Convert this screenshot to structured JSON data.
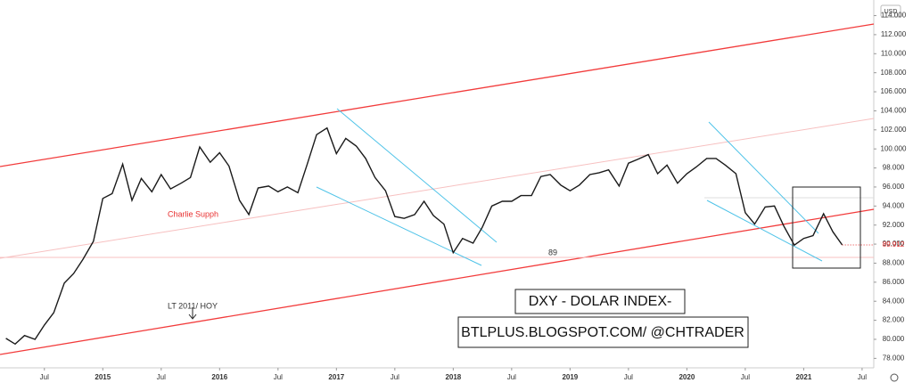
{
  "chart_data": {
    "type": "line",
    "color": "#1a1a1a",
    "x": [
      2014.17,
      2014.25,
      2014.33,
      2014.42,
      2014.5,
      2014.58,
      2014.67,
      2014.75,
      2014.83,
      2014.92,
      2015.0,
      2015.08,
      2015.17,
      2015.25,
      2015.33,
      2015.42,
      2015.5,
      2015.58,
      2015.67,
      2015.75,
      2015.83,
      2015.92,
      2016.0,
      2016.08,
      2016.17,
      2016.25,
      2016.33,
      2016.42,
      2016.5,
      2016.58,
      2016.67,
      2016.75,
      2016.83,
      2016.92,
      2017.0,
      2017.08,
      2017.17,
      2017.25,
      2017.33,
      2017.42,
      2017.5,
      2017.58,
      2017.67,
      2017.75,
      2017.83,
      2017.92,
      2018.0,
      2018.08,
      2018.17,
      2018.25,
      2018.33,
      2018.42,
      2018.5,
      2018.58,
      2018.67,
      2018.75,
      2018.83,
      2018.92,
      2019.0,
      2019.08,
      2019.17,
      2019.25,
      2019.33,
      2019.42,
      2019.5,
      2019.58,
      2019.67,
      2019.75,
      2019.83,
      2019.92,
      2020.0,
      2020.08,
      2020.17,
      2020.25,
      2020.33,
      2020.42,
      2020.5,
      2020.58,
      2020.67,
      2020.75,
      2020.83,
      2020.92,
      2021.0,
      2021.08,
      2021.17,
      2021.25,
      2021.33
    ],
    "values": [
      80.1,
      79.5,
      80.4,
      80.0,
      81.5,
      82.8,
      85.9,
      86.9,
      88.4,
      90.3,
      94.8,
      95.3,
      98.4,
      94.6,
      96.9,
      95.5,
      97.3,
      95.8,
      96.4,
      97.0,
      100.2,
      98.6,
      99.6,
      98.2,
      94.6,
      93.1,
      95.9,
      96.1,
      95.5,
      96.0,
      95.4,
      98.4,
      101.5,
      102.2,
      99.5,
      101.1,
      100.3,
      99.0,
      97.0,
      95.6,
      92.9,
      92.7,
      93.1,
      94.5,
      93.0,
      92.1,
      89.1,
      90.6,
      90.1,
      91.8,
      94.0,
      94.5,
      94.5,
      95.1,
      95.1,
      97.1,
      97.3,
      96.2,
      95.6,
      96.2,
      97.3,
      97.5,
      97.8,
      96.1,
      98.5,
      98.9,
      99.4,
      97.4,
      98.3,
      96.4,
      97.4,
      98.1,
      99.0,
      99.0,
      98.3,
      97.4,
      93.3,
      92.1,
      93.9,
      94.0,
      91.9,
      89.9,
      90.6,
      90.9,
      93.2,
      91.3,
      89.912
    ],
    "last_value": 89.912,
    "currency": "USD",
    "xlim": [
      2014.12,
      2021.6
    ],
    "xticks": [
      {
        "value": 2014.5,
        "label": "Jul"
      },
      2015,
      {
        "value": 2015.5,
        "label": "Jul"
      },
      2016,
      {
        "value": 2016.5,
        "label": "Jul"
      },
      2017,
      {
        "value": 2017.5,
        "label": "Jul"
      },
      2018,
      {
        "value": 2018.5,
        "label": "Jul"
      },
      2019,
      {
        "value": 2019.5,
        "label": "Jul"
      },
      2020,
      {
        "value": 2020.5,
        "label": "Jul"
      },
      2021,
      {
        "value": 2021.5,
        "label": "Jul"
      }
    ],
    "ylim": [
      76.35,
      115.64
    ],
    "yticks": [
      {
        "value": 78,
        "label": "78.000"
      },
      {
        "value": 80,
        "label": "80.000"
      },
      {
        "value": 82,
        "label": "82.000"
      },
      {
        "value": 84,
        "label": "84.000"
      },
      {
        "value": 86,
        "label": "86.000"
      },
      {
        "value": 88,
        "label": "88.000"
      },
      {
        "value": 90,
        "label": "90.000"
      },
      {
        "value": 92,
        "label": "92.000"
      },
      {
        "value": 94,
        "label": "94.000"
      },
      {
        "value": 96,
        "label": "96.000"
      },
      {
        "value": 98,
        "label": "98.000"
      },
      {
        "value": 100,
        "label": "100.000"
      },
      {
        "value": 102,
        "label": "102.000"
      },
      {
        "value": 104,
        "label": "104.000"
      },
      {
        "value": 106,
        "label": "106.000"
      },
      {
        "value": 108,
        "label": "108.000"
      },
      {
        "value": 110,
        "label": "110.000"
      },
      {
        "value": 112,
        "label": "112.000"
      },
      {
        "value": 114,
        "label": "114.000"
      }
    ],
    "annotations": [
      "Charlie Supph",
      "89",
      "LT 2011/ HOY",
      "DXY - DOLAR INDEX-",
      "BTLPLUS.BLOGSPOT.COM/ @CHTRADER"
    ]
  }
}
